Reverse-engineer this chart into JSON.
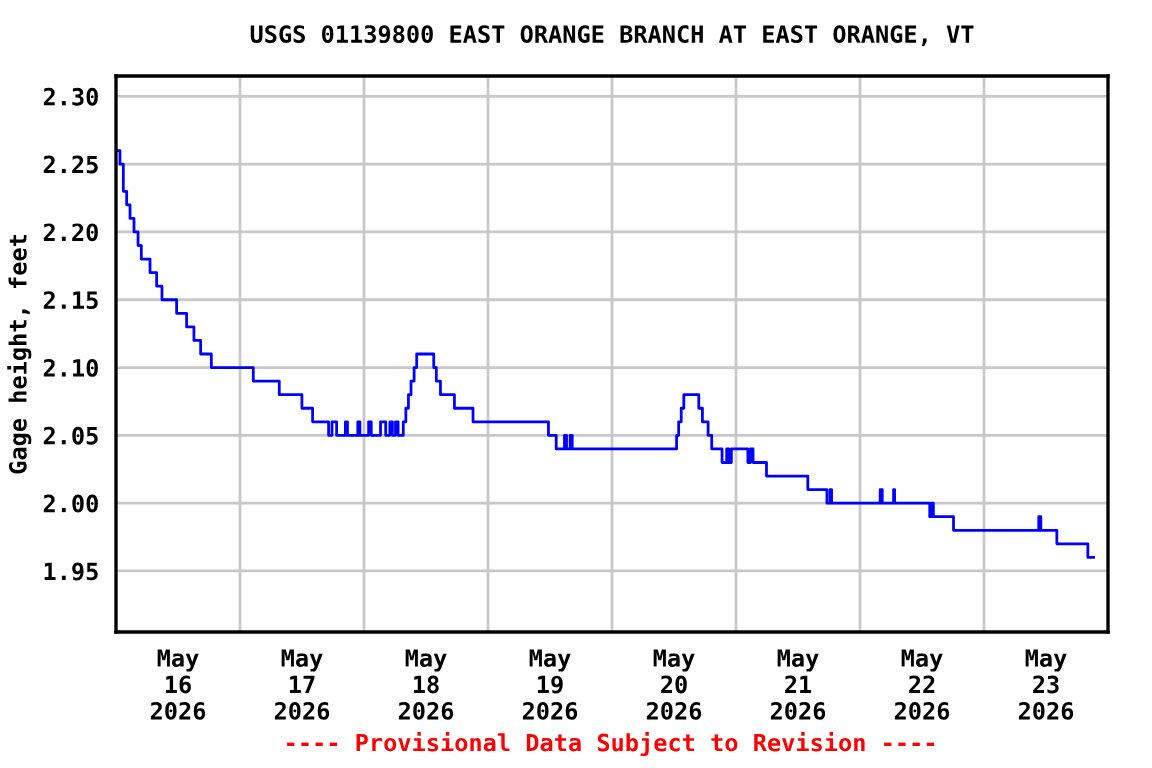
{
  "chart_data": {
    "type": "step",
    "title": "USGS 01139800 EAST ORANGE BRANCH AT EAST ORANGE, VT",
    "ylabel": "Gage height, feet",
    "annotations": [
      "---- Provisional Data Subject to Revision ----"
    ],
    "series": [
      {
        "color": "#0000ff",
        "x": [
          "2026-05-16T00:23",
          "2026-05-16T00:46",
          "2026-05-16T01:25",
          "2026-05-16T02:04",
          "2026-05-16T02:43",
          "2026-05-16T03:29",
          "2026-05-16T04:16",
          "2026-05-16T04:54",
          "2026-05-16T06:35",
          "2026-05-16T07:52",
          "2026-05-16T08:54",
          "2026-05-16T11:44",
          "2026-05-16T13:40",
          "2026-05-16T15:05",
          "2026-05-16T16:23",
          "2026-05-16T18:27",
          "2026-05-17T02:34",
          "2026-05-17T07:36",
          "2026-05-17T11:59",
          "2026-05-17T14:03",
          "2026-05-17T17:09",
          "2026-05-17T17:48",
          "2026-05-17T18:42",
          "2026-05-17T20:24",
          "2026-05-17T20:48",
          "2026-05-17T22:48",
          "2026-05-17T23:12",
          "2026-05-18T00:54",
          "2026-05-18T01:24",
          "2026-05-18T03:12",
          "2026-05-18T04:12",
          "2026-05-18T05:00",
          "2026-05-18T05:30",
          "2026-05-18T06:06",
          "2026-05-18T06:36",
          "2026-05-18T07:36",
          "2026-05-18T08:06",
          "2026-05-18T08:36",
          "2026-05-18T09:06",
          "2026-05-18T09:42",
          "2026-05-18T10:12",
          "2026-05-18T13:30",
          "2026-05-18T14:00",
          "2026-05-18T14:48",
          "2026-05-18T17:30",
          "2026-05-18T21:06",
          "2026-05-19T11:42",
          "2026-05-19T13:12",
          "2026-05-19T14:48",
          "2026-05-19T15:12",
          "2026-05-19T15:54",
          "2026-05-19T16:18",
          "2026-05-20T12:30",
          "2026-05-20T12:54",
          "2026-05-20T13:24",
          "2026-05-20T13:54",
          "2026-05-20T16:48",
          "2026-05-20T17:30",
          "2026-05-20T18:36",
          "2026-05-20T19:18",
          "2026-05-20T21:18",
          "2026-05-20T22:12",
          "2026-05-20T22:36",
          "2026-05-20T23:06",
          "2026-05-21T02:18",
          "2026-05-21T02:48",
          "2026-05-21T03:18",
          "2026-05-21T05:54",
          "2026-05-21T13:54",
          "2026-05-21T17:36",
          "2026-05-21T18:12",
          "2026-05-21T18:30",
          "2026-05-22T03:54",
          "2026-05-22T04:18",
          "2026-05-22T06:30",
          "2026-05-22T06:42",
          "2026-05-22T13:30",
          "2026-05-22T13:54",
          "2026-05-22T14:12",
          "2026-05-22T18:06",
          "2026-05-23T10:36",
          "2026-05-23T11:00",
          "2026-05-23T14:06",
          "2026-05-23T20:06",
          "2026-05-23T21:12"
        ],
        "values": [
          2.26,
          2.25,
          2.23,
          2.22,
          2.21,
          2.2,
          2.19,
          2.18,
          2.17,
          2.16,
          2.15,
          2.14,
          2.13,
          2.12,
          2.11,
          2.1,
          2.09,
          2.08,
          2.07,
          2.06,
          2.05,
          2.06,
          2.05,
          2.06,
          2.05,
          2.06,
          2.05,
          2.06,
          2.05,
          2.06,
          2.05,
          2.06,
          2.05,
          2.06,
          2.05,
          2.06,
          2.07,
          2.08,
          2.09,
          2.1,
          2.11,
          2.1,
          2.09,
          2.08,
          2.07,
          2.06,
          2.05,
          2.04,
          2.05,
          2.04,
          2.05,
          2.04,
          2.05,
          2.06,
          2.07,
          2.08,
          2.07,
          2.06,
          2.05,
          2.04,
          2.03,
          2.04,
          2.03,
          2.04,
          2.03,
          2.04,
          2.03,
          2.02,
          2.01,
          2.0,
          2.01,
          2.0,
          2.01,
          2.0,
          2.01,
          2.0,
          1.99,
          2.0,
          1.99,
          1.98,
          1.99,
          1.98,
          1.97,
          1.96,
          1.96
        ]
      }
    ],
    "xlim": [
      "2026-05-16T00:00",
      "2026-05-24T00:00"
    ],
    "xticks": [
      {
        "value": "2026-05-16T12:00",
        "label": "May\n16\n2026"
      },
      {
        "value": "2026-05-17",
        "label": null
      },
      {
        "value": "2026-05-17T12:00",
        "label": "May\n17\n2026"
      },
      {
        "value": "2026-05-18",
        "label": null
      },
      {
        "value": "2026-05-18T12:00",
        "label": "May\n18\n2026"
      },
      {
        "value": "2026-05-19",
        "label": null
      },
      {
        "value": "2026-05-19T12:00",
        "label": "May\n19\n2026"
      },
      {
        "value": "2026-05-20",
        "label": null
      },
      {
        "value": "2026-05-20T12:00",
        "label": "May\n20\n2026"
      },
      {
        "value": "2026-05-21",
        "label": null
      },
      {
        "value": "2026-05-21T12:00",
        "label": "May\n21\n2026"
      },
      {
        "value": "2026-05-22",
        "label": null
      },
      {
        "value": "2026-05-22T12:00",
        "label": "May\n22\n2026"
      },
      {
        "value": "2026-05-23",
        "label": null
      },
      {
        "value": "2026-05-23T12:00",
        "label": "May\n23\n2026"
      }
    ],
    "ylim": [
      1.905,
      2.315
    ],
    "yticks": [
      1.95,
      {
        "value": 2.0,
        "label": "2.00"
      },
      2.05,
      {
        "value": 2.1,
        "label": "2.10"
      },
      2.15,
      {
        "value": 2.2,
        "label": "2.20"
      },
      2.25,
      {
        "value": 2.3,
        "label": "2.30"
      }
    ],
    "grid": true,
    "legend": false
  }
}
